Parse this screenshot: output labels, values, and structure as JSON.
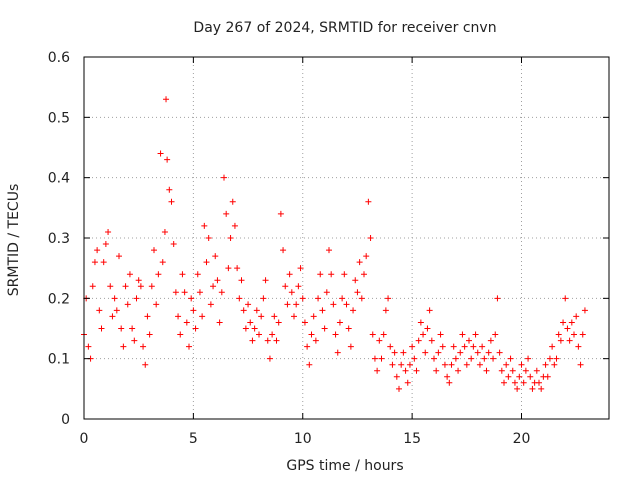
{
  "chart_data": {
    "type": "scatter",
    "title": "Day 267 of 2024, SRMTID for receiver cnvn",
    "xlabel": "GPS time / hours",
    "ylabel": "SRMTID / TECUs",
    "xlim": [
      0,
      24
    ],
    "ylim": [
      0,
      0.6
    ],
    "xticks": [
      0,
      5,
      10,
      15,
      20
    ],
    "xtick_labels": [
      "0",
      "5",
      "10",
      "15",
      "20"
    ],
    "yticks": [
      0,
      0.1,
      0.2,
      0.3,
      0.4,
      0.5,
      0.6
    ],
    "ytick_labels": [
      "0",
      "0.1",
      "0.2",
      "0.3",
      "0.4",
      "0.5",
      "0.6"
    ],
    "grid": true,
    "marker": "+",
    "color": "#ff0000",
    "series": [
      {
        "name": "SRMTID",
        "x": [
          0.0,
          0.1,
          0.2,
          0.3,
          0.4,
          0.5,
          0.6,
          0.7,
          0.8,
          0.9,
          1.0,
          1.1,
          1.2,
          1.3,
          1.4,
          1.5,
          1.6,
          1.7,
          1.8,
          1.9,
          2.0,
          2.1,
          2.2,
          2.3,
          2.4,
          2.5,
          2.6,
          2.7,
          2.8,
          2.9,
          3.0,
          3.1,
          3.2,
          3.3,
          3.4,
          3.5,
          3.6,
          3.7,
          3.75,
          3.8,
          3.9,
          4.0,
          4.1,
          4.2,
          4.3,
          4.4,
          4.5,
          4.6,
          4.7,
          4.8,
          4.9,
          5.0,
          5.1,
          5.2,
          5.3,
          5.4,
          5.5,
          5.6,
          5.7,
          5.8,
          5.9,
          6.0,
          6.1,
          6.2,
          6.3,
          6.4,
          6.5,
          6.6,
          6.7,
          6.8,
          6.9,
          7.0,
          7.1,
          7.2,
          7.3,
          7.4,
          7.5,
          7.6,
          7.7,
          7.8,
          7.9,
          8.0,
          8.1,
          8.2,
          8.3,
          8.4,
          8.5,
          8.6,
          8.7,
          8.8,
          8.9,
          9.0,
          9.1,
          9.2,
          9.3,
          9.4,
          9.5,
          9.6,
          9.7,
          9.8,
          9.9,
          10.0,
          10.1,
          10.2,
          10.3,
          10.4,
          10.5,
          10.6,
          10.7,
          10.8,
          10.9,
          11.0,
          11.1,
          11.2,
          11.3,
          11.4,
          11.5,
          11.6,
          11.7,
          11.8,
          11.9,
          12.0,
          12.1,
          12.2,
          12.3,
          12.4,
          12.5,
          12.6,
          12.7,
          12.8,
          12.9,
          13.0,
          13.1,
          13.2,
          13.3,
          13.4,
          13.5,
          13.6,
          13.7,
          13.8,
          13.9,
          14.0,
          14.1,
          14.2,
          14.3,
          14.4,
          14.5,
          14.6,
          14.7,
          14.8,
          14.9,
          15.0,
          15.1,
          15.2,
          15.3,
          15.4,
          15.5,
          15.6,
          15.7,
          15.8,
          15.9,
          16.0,
          16.1,
          16.2,
          16.3,
          16.4,
          16.5,
          16.6,
          16.7,
          16.8,
          16.9,
          17.0,
          17.1,
          17.2,
          17.3,
          17.4,
          17.5,
          17.6,
          17.7,
          17.8,
          17.9,
          18.0,
          18.1,
          18.2,
          18.3,
          18.4,
          18.5,
          18.6,
          18.7,
          18.8,
          18.9,
          19.0,
          19.1,
          19.2,
          19.3,
          19.4,
          19.5,
          19.6,
          19.7,
          19.8,
          19.9,
          20.0,
          20.1,
          20.2,
          20.3,
          20.4,
          20.5,
          20.6,
          20.7,
          20.8,
          20.9,
          21.0,
          21.1,
          21.2,
          21.3,
          21.4,
          21.5,
          21.6,
          21.7,
          21.8,
          21.9,
          22.0,
          22.1,
          22.2,
          22.3,
          22.4,
          22.5,
          22.6,
          22.7,
          22.8,
          22.9
        ],
        "y": [
          0.14,
          0.2,
          0.12,
          0.1,
          0.22,
          0.26,
          0.28,
          0.18,
          0.15,
          0.26,
          0.29,
          0.31,
          0.22,
          0.17,
          0.2,
          0.18,
          0.27,
          0.15,
          0.12,
          0.22,
          0.19,
          0.24,
          0.15,
          0.13,
          0.2,
          0.23,
          0.22,
          0.12,
          0.09,
          0.17,
          0.14,
          0.22,
          0.28,
          0.19,
          0.24,
          0.44,
          0.26,
          0.31,
          0.53,
          0.43,
          0.38,
          0.36,
          0.29,
          0.21,
          0.17,
          0.14,
          0.24,
          0.21,
          0.16,
          0.12,
          0.2,
          0.18,
          0.15,
          0.24,
          0.21,
          0.17,
          0.32,
          0.26,
          0.3,
          0.19,
          0.22,
          0.27,
          0.23,
          0.16,
          0.21,
          0.4,
          0.34,
          0.25,
          0.3,
          0.36,
          0.32,
          0.25,
          0.2,
          0.23,
          0.18,
          0.15,
          0.19,
          0.16,
          0.13,
          0.15,
          0.18,
          0.14,
          0.17,
          0.2,
          0.23,
          0.13,
          0.1,
          0.14,
          0.17,
          0.13,
          0.16,
          0.34,
          0.28,
          0.22,
          0.19,
          0.24,
          0.21,
          0.17,
          0.19,
          0.22,
          0.25,
          0.2,
          0.16,
          0.12,
          0.09,
          0.14,
          0.17,
          0.13,
          0.2,
          0.24,
          0.18,
          0.15,
          0.21,
          0.28,
          0.24,
          0.19,
          0.14,
          0.11,
          0.16,
          0.2,
          0.24,
          0.19,
          0.15,
          0.12,
          0.18,
          0.23,
          0.21,
          0.26,
          0.2,
          0.24,
          0.27,
          0.36,
          0.3,
          0.14,
          0.1,
          0.08,
          0.13,
          0.1,
          0.14,
          0.18,
          0.2,
          0.12,
          0.09,
          0.11,
          0.07,
          0.05,
          0.09,
          0.11,
          0.08,
          0.06,
          0.09,
          0.12,
          0.1,
          0.08,
          0.13,
          0.16,
          0.14,
          0.11,
          0.15,
          0.18,
          0.13,
          0.1,
          0.08,
          0.11,
          0.14,
          0.12,
          0.09,
          0.07,
          0.06,
          0.09,
          0.12,
          0.1,
          0.08,
          0.11,
          0.14,
          0.12,
          0.09,
          0.13,
          0.1,
          0.12,
          0.14,
          0.11,
          0.09,
          0.12,
          0.1,
          0.08,
          0.11,
          0.13,
          0.1,
          0.14,
          0.2,
          0.11,
          0.08,
          0.06,
          0.09,
          0.07,
          0.1,
          0.08,
          0.06,
          0.05,
          0.07,
          0.09,
          0.06,
          0.08,
          0.1,
          0.07,
          0.05,
          0.06,
          0.08,
          0.06,
          0.05,
          0.07,
          0.09,
          0.07,
          0.1,
          0.12,
          0.09,
          0.1,
          0.14,
          0.13,
          0.16,
          0.2,
          0.15,
          0.13,
          0.16,
          0.14,
          0.17,
          0.12,
          0.09,
          0.14,
          0.18
        ]
      }
    ]
  }
}
